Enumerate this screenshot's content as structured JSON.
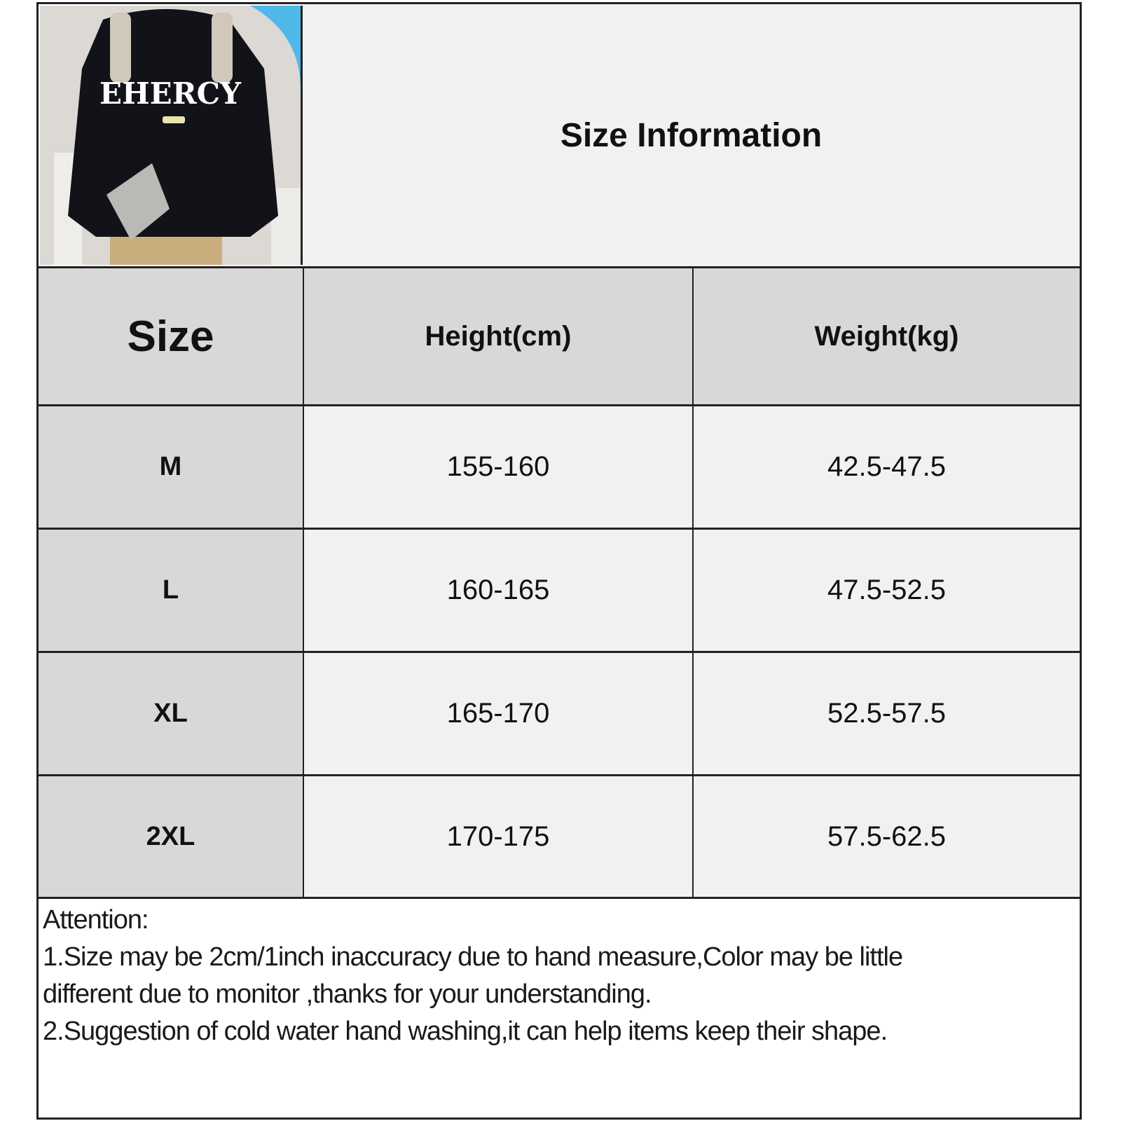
{
  "photo": {
    "shirt_print": "EHERCY",
    "alt": "model wearing black sweatshirt"
  },
  "title": "Size Information",
  "table": {
    "headers": [
      "Size",
      "Height(cm)",
      "Weight(kg)"
    ],
    "rows": [
      [
        "M",
        "155-160",
        "42.5-47.5"
      ],
      [
        "L",
        "160-165",
        "47.5-52.5"
      ],
      [
        "XL",
        "165-170",
        "52.5-57.5"
      ],
      [
        "2XL",
        "170-175",
        "57.5-62.5"
      ]
    ]
  },
  "notes": {
    "heading": "Attention:",
    "line1": "1.Size may be 2cm/1inch inaccuracy due to hand measure,Color may be little",
    "line2": "different due to monitor ,thanks for your understanding.",
    "line3": "2.Suggestion of cold water hand washing,it can help items keep their shape."
  },
  "colors": {
    "header_bg": "#d8d8d8",
    "cell_bg": "#f1f1f1",
    "border": "#222222"
  }
}
